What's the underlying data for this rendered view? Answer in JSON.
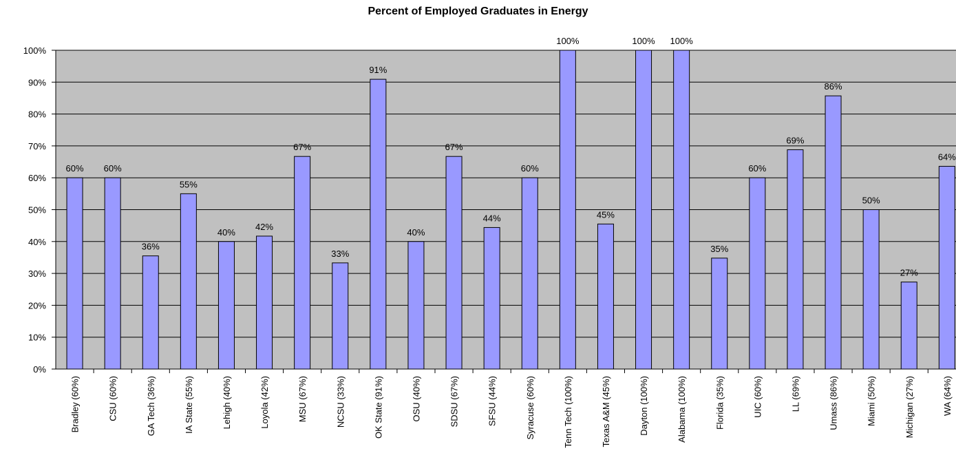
{
  "chart_data": {
    "type": "bar",
    "title": "Percent of Employed Graduates in Energy",
    "xlabel": "",
    "ylabel": "",
    "ylim": [
      0,
      100
    ],
    "y_tick_values": [
      0,
      10,
      20,
      30,
      40,
      50,
      60,
      70,
      80,
      90,
      100
    ],
    "y_tick_labels": [
      "0%",
      "10%",
      "20%",
      "30%",
      "40%",
      "50%",
      "60%",
      "70%",
      "80%",
      "90%",
      "100%"
    ],
    "categories": [
      "Bradley (60%)",
      "CSU (60%)",
      "GA Tech (36%)",
      "IA State (55%)",
      "Lehigh (40%)",
      "Loyola (42%)",
      "MSU (67%)",
      "NCSU (33%)",
      "OK State (91%)",
      "OSU (40%)",
      "SDSU (67%)",
      "SFSU (44%)",
      "Syracuse (60%)",
      "Tenn Tech (100%)",
      "Texas A&M (45%)",
      "Dayton (100%)",
      "Alabama (100%)",
      "Florida (35%)",
      "UIC (60%)",
      "LL (69%)",
      "Umass (86%)",
      "Miami (50%)",
      "Michigan (27%)",
      "WA (64%)"
    ],
    "values": [
      60,
      60,
      35.5,
      55,
      40,
      41.7,
      66.7,
      33.3,
      90.9,
      40,
      66.7,
      44.4,
      60,
      100,
      45.5,
      100,
      100,
      34.8,
      60,
      68.8,
      85.7,
      50,
      27.3,
      63.6
    ],
    "data_labels": [
      "60%",
      "60%",
      "36%",
      "55%",
      "40%",
      "42%",
      "67%",
      "33%",
      "91%",
      "40%",
      "67%",
      "44%",
      "60%",
      "100%",
      "45%",
      "100%",
      "100%",
      "35%",
      "60%",
      "69%",
      "86%",
      "50%",
      "27%",
      "64%"
    ],
    "grid": true,
    "legend": "none",
    "colors": {
      "bar_fill": "#9999ff",
      "bar_stroke": "#000000",
      "plot_background": "#c0c0c0",
      "gridline": "#000000"
    }
  }
}
